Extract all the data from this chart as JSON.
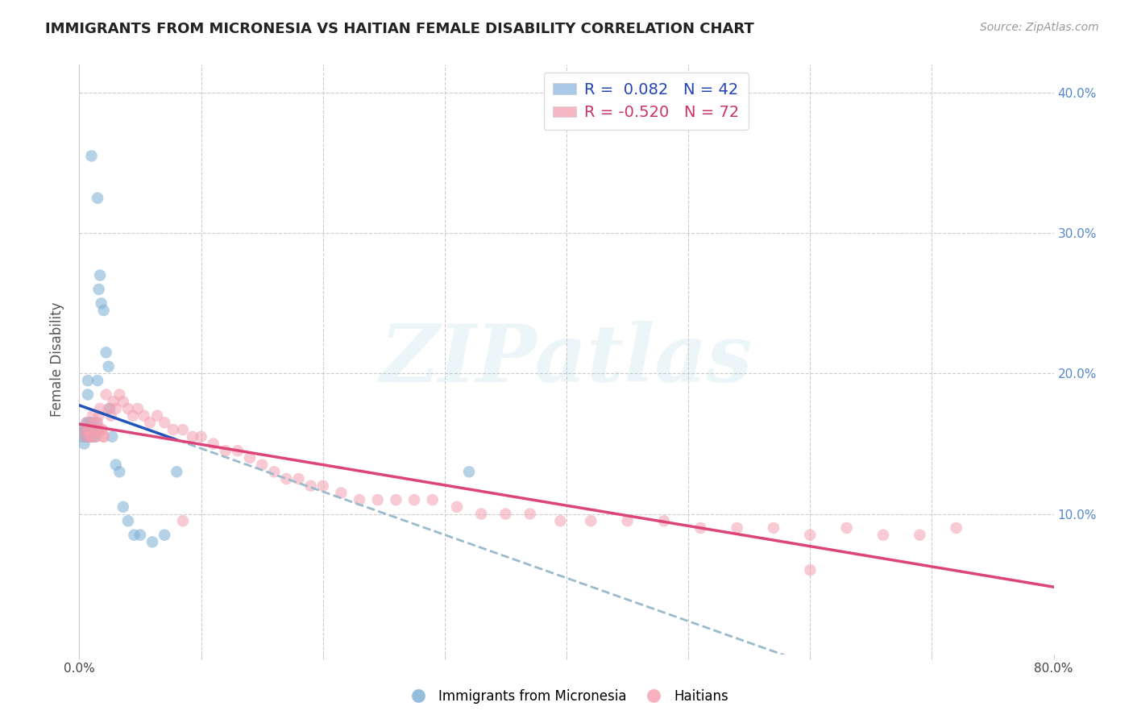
{
  "title": "IMMIGRANTS FROM MICRONESIA VS HAITIAN FEMALE DISABILITY CORRELATION CHART",
  "source": "Source: ZipAtlas.com",
  "ylabel": "Female Disability",
  "x_min": 0.0,
  "x_max": 0.8,
  "y_min": 0.0,
  "y_max": 0.42,
  "x_tick_positions": [
    0.0,
    0.1,
    0.2,
    0.3,
    0.4,
    0.5,
    0.6,
    0.7,
    0.8
  ],
  "x_tick_labels": [
    "0.0%",
    "",
    "",
    "",
    "",
    "",
    "",
    "",
    "80.0%"
  ],
  "y_tick_positions": [
    0.0,
    0.1,
    0.2,
    0.3,
    0.4
  ],
  "y_tick_labels_right": [
    "",
    "10.0%",
    "20.0%",
    "30.0%",
    "40.0%"
  ],
  "grid_color": "#cccccc",
  "background_color": "#ffffff",
  "blue_scatter_color": "#7aadd4",
  "pink_scatter_color": "#f4a0b0",
  "blue_line_color": "#2255bb",
  "pink_line_color": "#dd4477",
  "dashed_line_color": "#99bbcc",
  "R_blue": 0.082,
  "N_blue": 42,
  "R_pink": -0.52,
  "N_pink": 72,
  "legend_label_blue": "Immigrants from Micronesia",
  "legend_label_pink": "Haitians",
  "watermark": "ZIPatlas",
  "blue_x": [
    0.002,
    0.003,
    0.004,
    0.004,
    0.005,
    0.005,
    0.006,
    0.006,
    0.007,
    0.007,
    0.008,
    0.008,
    0.009,
    0.009,
    0.01,
    0.01,
    0.011,
    0.011,
    0.012,
    0.013,
    0.014,
    0.015,
    0.016,
    0.017,
    0.018,
    0.02,
    0.022,
    0.024,
    0.025,
    0.027,
    0.03,
    0.033,
    0.036,
    0.04,
    0.045,
    0.05,
    0.06,
    0.07,
    0.08,
    0.32,
    0.01,
    0.015
  ],
  "blue_y": [
    0.16,
    0.155,
    0.16,
    0.15,
    0.155,
    0.16,
    0.165,
    0.155,
    0.185,
    0.195,
    0.155,
    0.165,
    0.155,
    0.16,
    0.155,
    0.165,
    0.155,
    0.16,
    0.16,
    0.155,
    0.165,
    0.195,
    0.26,
    0.27,
    0.25,
    0.245,
    0.215,
    0.205,
    0.175,
    0.155,
    0.135,
    0.13,
    0.105,
    0.095,
    0.085,
    0.085,
    0.08,
    0.085,
    0.13,
    0.13,
    0.355,
    0.325
  ],
  "pink_x": [
    0.003,
    0.005,
    0.006,
    0.007,
    0.008,
    0.009,
    0.01,
    0.011,
    0.012,
    0.013,
    0.014,
    0.015,
    0.016,
    0.017,
    0.018,
    0.019,
    0.02,
    0.022,
    0.024,
    0.026,
    0.028,
    0.03,
    0.033,
    0.036,
    0.04,
    0.044,
    0.048,
    0.053,
    0.058,
    0.064,
    0.07,
    0.077,
    0.085,
    0.093,
    0.1,
    0.11,
    0.12,
    0.13,
    0.14,
    0.15,
    0.16,
    0.17,
    0.18,
    0.19,
    0.2,
    0.215,
    0.23,
    0.245,
    0.26,
    0.275,
    0.29,
    0.31,
    0.33,
    0.35,
    0.37,
    0.395,
    0.42,
    0.45,
    0.48,
    0.51,
    0.54,
    0.57,
    0.6,
    0.63,
    0.66,
    0.69,
    0.72,
    0.01,
    0.015,
    0.02,
    0.085,
    0.6
  ],
  "pink_y": [
    0.16,
    0.155,
    0.165,
    0.16,
    0.155,
    0.16,
    0.155,
    0.17,
    0.165,
    0.16,
    0.155,
    0.165,
    0.17,
    0.175,
    0.16,
    0.16,
    0.155,
    0.185,
    0.175,
    0.17,
    0.18,
    0.175,
    0.185,
    0.18,
    0.175,
    0.17,
    0.175,
    0.17,
    0.165,
    0.17,
    0.165,
    0.16,
    0.16,
    0.155,
    0.155,
    0.15,
    0.145,
    0.145,
    0.14,
    0.135,
    0.13,
    0.125,
    0.125,
    0.12,
    0.12,
    0.115,
    0.11,
    0.11,
    0.11,
    0.11,
    0.11,
    0.105,
    0.1,
    0.1,
    0.1,
    0.095,
    0.095,
    0.095,
    0.095,
    0.09,
    0.09,
    0.09,
    0.085,
    0.09,
    0.085,
    0.085,
    0.09,
    0.155,
    0.16,
    0.155,
    0.095,
    0.06
  ]
}
